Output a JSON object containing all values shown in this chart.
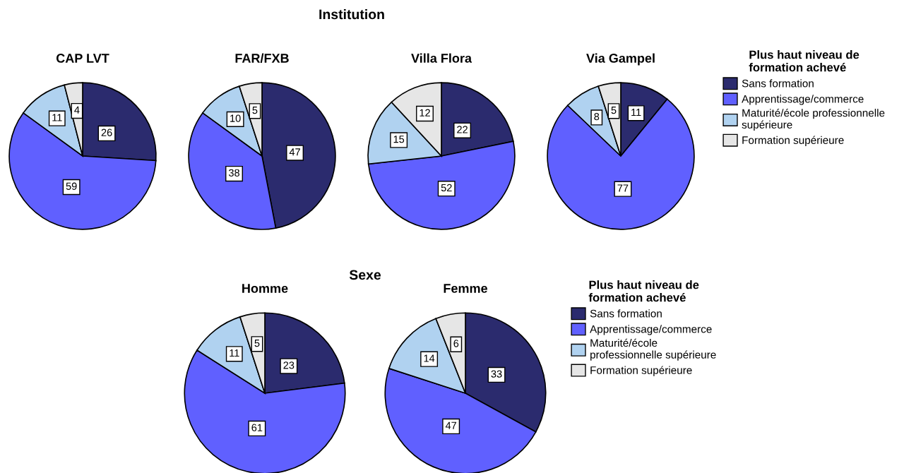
{
  "chart_data": [
    {
      "type": "pie",
      "title": "CAP LVT",
      "annotations": [
        "Institution"
      ],
      "categories": [
        null,
        null,
        null,
        null
      ],
      "values": [
        26,
        59,
        11,
        4
      ],
      "colors": [
        "#2b2b6e",
        "#6060ff",
        "#b0d2f0",
        "#e6e6e6"
      ],
      "data_labels": true
    },
    {
      "type": "pie",
      "title": "FAR/FXB",
      "categories": [
        null,
        null,
        null,
        null
      ],
      "values": [
        47,
        38,
        10,
        5
      ],
      "colors": [
        "#2b2b6e",
        "#6060ff",
        "#b0d2f0",
        "#e6e6e6"
      ],
      "data_labels": true
    },
    {
      "type": "pie",
      "title": "Villa Flora",
      "categories": [
        null,
        null,
        null,
        null
      ],
      "values": [
        22,
        52,
        15,
        12
      ],
      "colors": [
        "#2b2b6e",
        "#6060ff",
        "#b0d2f0",
        "#e6e6e6"
      ],
      "data_labels": true
    },
    {
      "type": "pie",
      "title": "Via Gampel",
      "categories": [
        "Sans formation",
        "Apprentissage/commerce",
        "Maturité/école professionnelle\nsupérieure",
        "Formation supérieure"
      ],
      "values": [
        11,
        77,
        8,
        5
      ],
      "colors": [
        "#2b2b6e",
        "#6060ff",
        "#b0d2f0",
        "#e6e6e6"
      ],
      "data_labels": true,
      "legend": "right",
      "legend_title": "Plus haut niveau de\nformation achevé"
    },
    {
      "type": "pie",
      "title": "Homme",
      "annotations": [
        "Sexe"
      ],
      "categories": [
        null,
        null,
        null,
        null
      ],
      "values": [
        23,
        61,
        11,
        5
      ],
      "colors": [
        "#2b2b6e",
        "#6060ff",
        "#b0d2f0",
        "#e6e6e6"
      ],
      "data_labels": true
    },
    {
      "type": "pie",
      "title": "Femme",
      "categories": [
        "Sans formation",
        "Apprentissage/commerce",
        "Maturité/école\nprofessionnelle supérieure",
        "Formation supérieure"
      ],
      "values": [
        33,
        47,
        14,
        6
      ],
      "colors": [
        "#2b2b6e",
        "#6060ff",
        "#b0d2f0",
        "#e6e6e6"
      ],
      "data_labels": true,
      "legend": "right",
      "legend_title": "Plus haut niveau de\nformation achevé"
    }
  ]
}
